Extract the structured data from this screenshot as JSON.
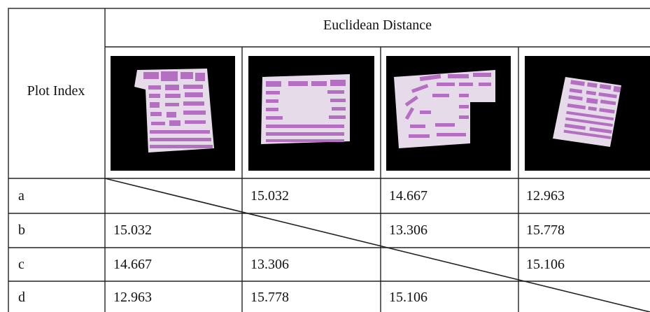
{
  "table": {
    "header_title": "Euclidean Distance",
    "row_header": "Plot Index",
    "thumbnails": [
      {
        "name": "plot-a-thumbnail",
        "shape": "irregular-rectangle-with-notch",
        "building_color": "#b56fc2",
        "site_color": "#e6dbe8"
      },
      {
        "name": "plot-b-thumbnail",
        "shape": "rectangle",
        "building_color": "#b56fc2",
        "site_color": "#e6dbe8"
      },
      {
        "name": "plot-c-thumbnail",
        "shape": "l-shape",
        "building_color": "#b56fc2",
        "site_color": "#e6dbe8"
      },
      {
        "name": "plot-d-thumbnail",
        "shape": "rotated-rectangle",
        "building_color": "#b56fc2",
        "site_color": "#e6dbe8"
      }
    ],
    "rows": [
      {
        "label": "a",
        "cells": [
          "",
          "15.032",
          "14.667",
          "12.963"
        ]
      },
      {
        "label": "b",
        "cells": [
          "15.032",
          "",
          "13.306",
          "15.778"
        ]
      },
      {
        "label": "c",
        "cells": [
          "14.667",
          "13.306",
          "",
          "15.106"
        ]
      },
      {
        "label": "d",
        "cells": [
          "12.963",
          "15.778",
          "15.106",
          ""
        ]
      }
    ]
  }
}
